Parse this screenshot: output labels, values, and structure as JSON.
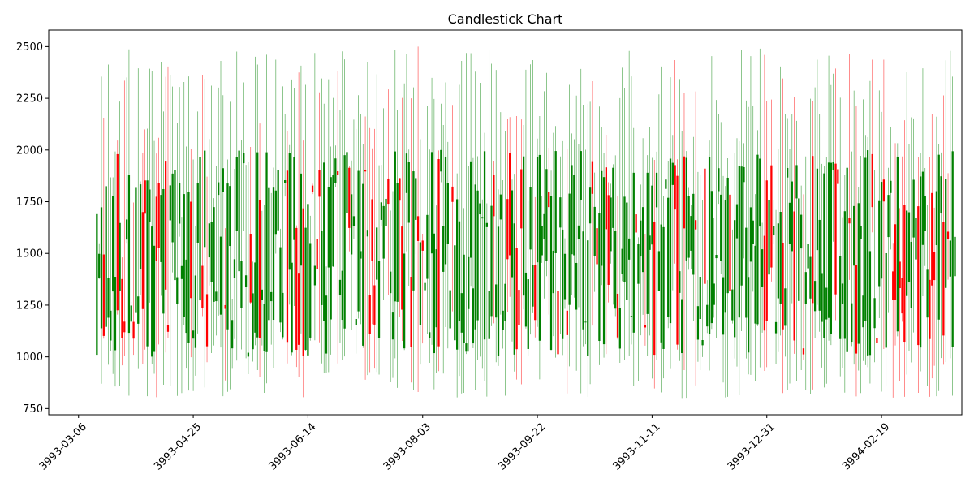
{
  "chart_data": {
    "type": "candlestick",
    "title": "Candlestick Chart",
    "xlabel": "",
    "ylabel": "",
    "x_range": [
      "3993-02-21",
      "3994-03-26"
    ],
    "ylim": [
      720,
      2580
    ],
    "y_ticks": [
      750,
      1000,
      1250,
      1500,
      1750,
      2000,
      2250,
      2500
    ],
    "x_ticks": [
      "3993-03-06",
      "3993-04-25",
      "3993-06-14",
      "3993-08-03",
      "3993-09-22",
      "3993-11-11",
      "3993-12-31",
      "3994-02-19"
    ],
    "x_tick_rotation_deg": 45,
    "grid": false,
    "legend": "none",
    "date_start": "3993-03-14",
    "date_end": "3994-03-23",
    "n_candles": 375,
    "approx_price_range": {
      "low_min": 800,
      "high_max": 2500,
      "body_min": 1000,
      "body_max": 2000
    },
    "colors": {
      "up": "#008000",
      "down": "#ff0000",
      "axis": "#000000",
      "background": "#ffffff"
    },
    "sample_candles": [
      {
        "date": "3993-03-14",
        "open": 1010,
        "high": 2000,
        "low": 980,
        "close": 1690
      },
      {
        "date": "3993-08-01",
        "open": 1680,
        "high": 2500,
        "low": 830,
        "close": 1560
      },
      {
        "date": "3994-03-23",
        "open": 1390,
        "high": 2150,
        "low": 850,
        "close": 1580
      }
    ]
  }
}
